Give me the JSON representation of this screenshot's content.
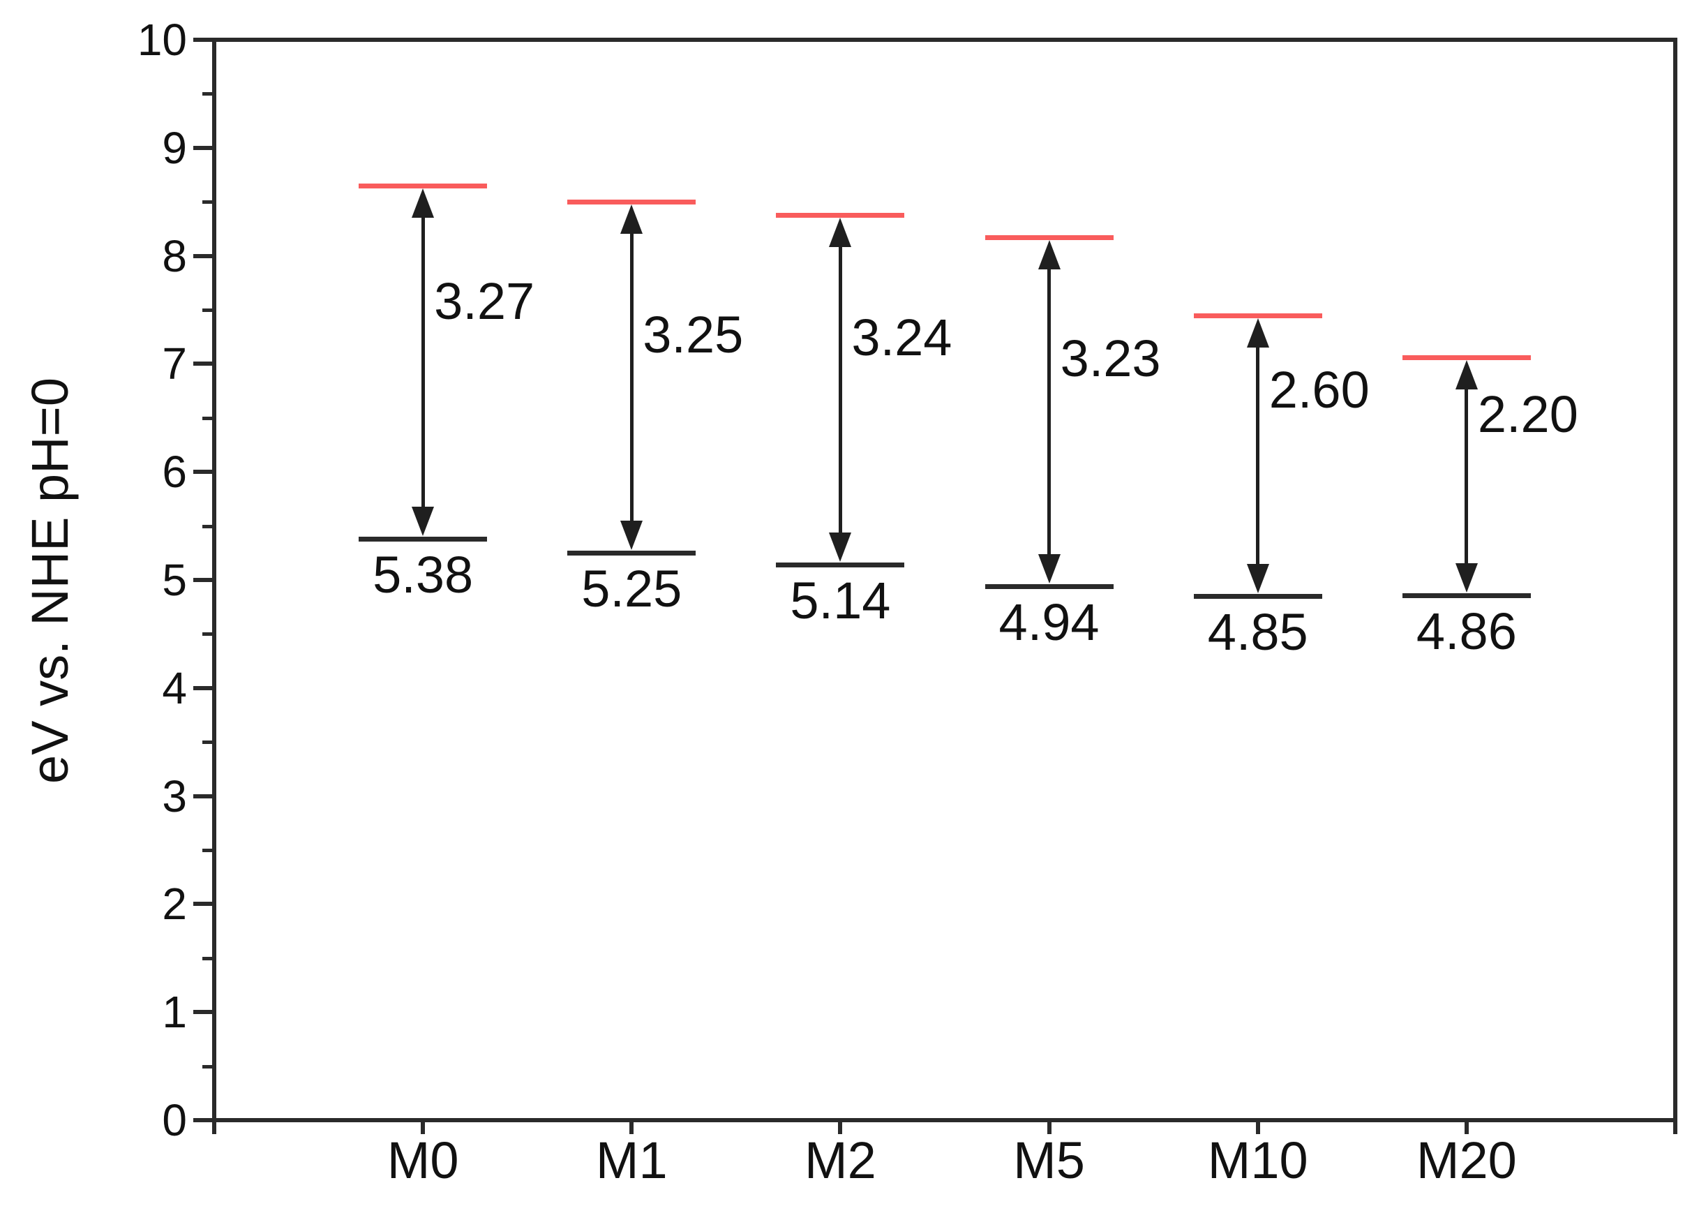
{
  "page": {
    "background": "#ffffff"
  },
  "chart_data": {
    "type": "bar",
    "subtype": "floating-interval-energy-levels",
    "title": "",
    "xlabel": "",
    "ylabel": "eV vs. NHE pH=0",
    "ylim": [
      0,
      10
    ],
    "y_major_ticks": [
      "0",
      "1",
      "2",
      "3",
      "4",
      "5",
      "6",
      "7",
      "8",
      "9",
      "10"
    ],
    "y_minor_ticks": [
      0.5,
      1.5,
      2.5,
      3.5,
      4.5,
      5.5,
      6.5,
      7.5,
      8.5,
      9.5
    ],
    "grid": "off",
    "legend": "none",
    "categories": [
      "M0",
      "M1",
      "M2",
      "M5",
      "M10",
      "M20"
    ],
    "series": [
      {
        "name": "band-top-level",
        "color": "#f95c5c",
        "values": [
          8.65,
          8.5,
          8.38,
          8.17,
          7.45,
          7.06
        ]
      },
      {
        "name": "band-bottom-level",
        "color": "#2a2a2a",
        "values": [
          5.38,
          5.25,
          5.14,
          4.94,
          4.85,
          4.86
        ]
      },
      {
        "name": "band-gap",
        "values": [
          3.27,
          3.25,
          3.24,
          3.23,
          2.6,
          2.2
        ]
      }
    ],
    "gap_labels": [
      "3.27",
      "3.25",
      "3.24",
      "3.23",
      "2.60",
      "2.20"
    ],
    "bottom_labels": [
      "5.38",
      "5.25",
      "5.14",
      "4.94",
      "4.85",
      "4.86"
    ],
    "gap_label_center_ev": [
      7.58,
      7.27,
      7.24,
      7.05,
      6.76,
      6.53
    ],
    "colors": {
      "level_top": "#f95c5c",
      "level_bottom": "#2a2a2a",
      "arrow": "#1f1f1f",
      "frame": "#2a2a2a",
      "text": "#111111"
    }
  }
}
